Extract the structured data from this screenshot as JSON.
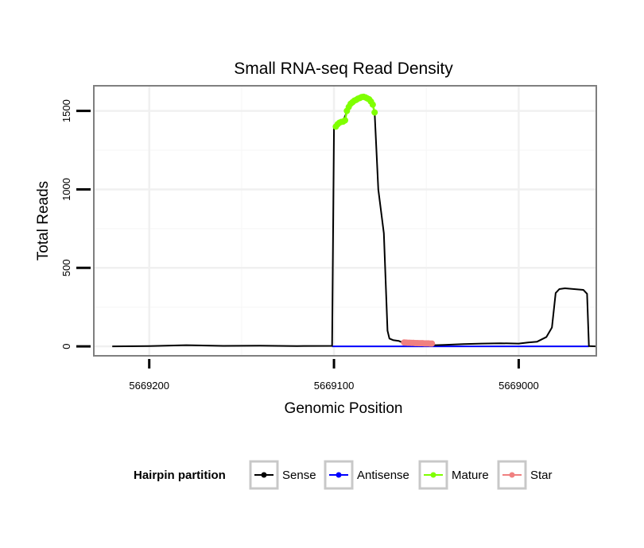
{
  "chart_data": {
    "type": "line",
    "title": "Small RNA-seq Read Density",
    "xlabel": "Genomic Position",
    "ylabel": "Total Reads",
    "x_reversed": true,
    "xlim": [
      5669230,
      5668958
    ],
    "ylim": [
      -60,
      1660
    ],
    "x_ticks": [
      5669200,
      5669100,
      5669000
    ],
    "x_tick_labels": [
      "5669200",
      "5669100",
      "5669000"
    ],
    "y_ticks": [
      0,
      500,
      1000,
      1500
    ],
    "y_tick_labels": [
      "0",
      "500",
      "1000",
      "1500"
    ],
    "grid": true,
    "legend": {
      "title": "Hairpin partition",
      "position": "bottom",
      "entries": [
        {
          "label": "Sense",
          "color": "#000000"
        },
        {
          "label": "Antisense",
          "color": "#0000ff"
        },
        {
          "label": "Mature",
          "color": "#7fff00"
        },
        {
          "label": "Star",
          "color": "#f08080"
        }
      ]
    },
    "series": [
      {
        "name": "Sense",
        "color": "#000000",
        "x": [
          5669220,
          5669200,
          5669180,
          5669160,
          5669140,
          5669120,
          5669101,
          5669100,
          5669099,
          5669095,
          5669092,
          5669088,
          5669084,
          5669080,
          5669078,
          5669076,
          5669073,
          5669071,
          5669070,
          5669068,
          5669065,
          5669062,
          5669060,
          5669055,
          5669050,
          5669045,
          5669040,
          5669030,
          5669020,
          5669010,
          5669000,
          5668995,
          5668990,
          5668985,
          5668982,
          5668980,
          5668978,
          5668975,
          5668970,
          5668965,
          5668963,
          5668962,
          5668958
        ],
        "values": [
          0,
          2,
          8,
          3,
          5,
          2,
          3,
          1400,
          1420,
          1440,
          1520,
          1570,
          1590,
          1580,
          1490,
          1000,
          720,
          100,
          50,
          40,
          35,
          20,
          15,
          10,
          8,
          8,
          10,
          15,
          18,
          20,
          18,
          25,
          30,
          60,
          120,
          340,
          365,
          370,
          365,
          360,
          335,
          2,
          0
        ]
      },
      {
        "name": "Antisense",
        "color": "#0000ff",
        "x": [
          5669101,
          5668962
        ],
        "values": [
          0,
          0
        ]
      },
      {
        "name": "Mature",
        "color": "#7fff00",
        "x": [
          5669099,
          5669098,
          5669097,
          5669096,
          5669095,
          5669094,
          5669093,
          5669092,
          5669091,
          5669090,
          5669089,
          5669088,
          5669087,
          5669086,
          5669085,
          5669084,
          5669083,
          5669082,
          5669081,
          5669080,
          5669079,
          5669078
        ],
        "values": [
          1400,
          1415,
          1425,
          1430,
          1432,
          1440,
          1500,
          1525,
          1545,
          1555,
          1565,
          1570,
          1578,
          1582,
          1588,
          1590,
          1586,
          1580,
          1574,
          1560,
          1540,
          1490
        ]
      },
      {
        "name": "Star",
        "color": "#f08080",
        "x": [
          5669062,
          5669061,
          5669060,
          5669059,
          5669058,
          5669057,
          5669056,
          5669055,
          5669054,
          5669053,
          5669052,
          5669051,
          5669050,
          5669049,
          5669048,
          5669047
        ],
        "values": [
          25,
          24,
          23,
          23,
          22,
          22,
          21,
          21,
          20,
          20,
          20,
          19,
          19,
          19,
          18,
          18
        ]
      }
    ]
  }
}
